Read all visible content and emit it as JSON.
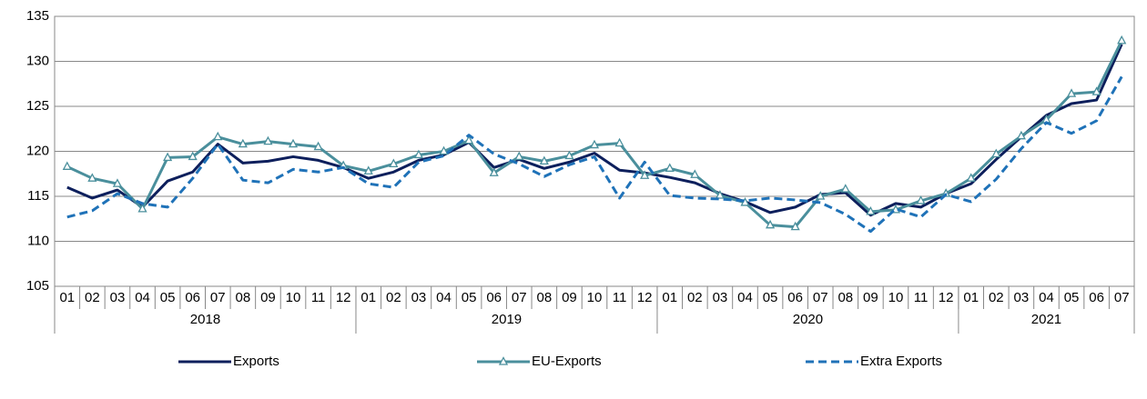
{
  "chart_data": {
    "type": "line",
    "categories": [
      "01",
      "02",
      "03",
      "04",
      "05",
      "06",
      "07",
      "08",
      "09",
      "10",
      "11",
      "12",
      "01",
      "02",
      "03",
      "04",
      "05",
      "06",
      "07",
      "08",
      "09",
      "10",
      "11",
      "12",
      "01",
      "02",
      "03",
      "04",
      "05",
      "06",
      "07",
      "08",
      "09",
      "10",
      "11",
      "12",
      "01",
      "02",
      "03",
      "04",
      "05",
      "06",
      "07"
    ],
    "x_groups": [
      "2018",
      "2019",
      "2020",
      "2021"
    ],
    "series": [
      {
        "name": "Exports",
        "color": "#0d1f5c",
        "dash": false,
        "marker": false,
        "values": [
          116,
          114.8,
          115.7,
          113.8,
          116.7,
          117.7,
          120.8,
          118.7,
          118.9,
          119.4,
          119.0,
          118.2,
          117.0,
          117.7,
          119.0,
          119.6,
          121.0,
          118.2,
          119.1,
          118.1,
          118.8,
          119.8,
          117.9,
          117.6,
          117.1,
          116.5,
          115.3,
          114.4,
          113.2,
          113.8,
          115.2,
          115.4,
          112.9,
          114.2,
          113.8,
          115.3,
          116.4,
          119.1,
          121.6,
          124.0,
          125.3,
          125.7,
          131.9
        ]
      },
      {
        "name": "EU-Exports",
        "color": "#4a8f9c",
        "dash": false,
        "marker": true,
        "values": [
          118.3,
          117.0,
          116.4,
          113.6,
          119.3,
          119.4,
          121.6,
          120.8,
          121.1,
          120.8,
          120.5,
          118.4,
          117.8,
          118.6,
          119.6,
          120.0,
          121.2,
          117.6,
          119.4,
          118.9,
          119.5,
          120.7,
          120.9,
          117.3,
          118.1,
          117.4,
          115.1,
          114.3,
          111.8,
          111.6,
          115.0,
          115.8,
          113.3,
          113.5,
          114.5,
          115.3,
          117.0,
          119.7,
          121.7,
          123.5,
          126.4,
          126.6,
          132.3
        ]
      },
      {
        "name": "Extra Exports",
        "color": "#1f72b8",
        "dash": true,
        "marker": false,
        "values": [
          112.7,
          113.4,
          115.3,
          114.2,
          113.8,
          117.0,
          120.8,
          116.8,
          116.5,
          118.0,
          117.7,
          118.2,
          116.4,
          116.0,
          118.8,
          119.5,
          121.8,
          119.7,
          118.6,
          117.2,
          118.5,
          119.4,
          114.8,
          118.8,
          115.1,
          114.8,
          114.7,
          114.5,
          114.8,
          114.6,
          114.3,
          113.0,
          111.1,
          113.6,
          112.7,
          115.2,
          114.4,
          116.9,
          120.3,
          123.2,
          122.0,
          123.4,
          128.3
        ]
      }
    ],
    "ylim": [
      105,
      135
    ],
    "yticks": [
      105,
      110,
      115,
      120,
      125,
      130,
      135
    ],
    "grid": true
  }
}
